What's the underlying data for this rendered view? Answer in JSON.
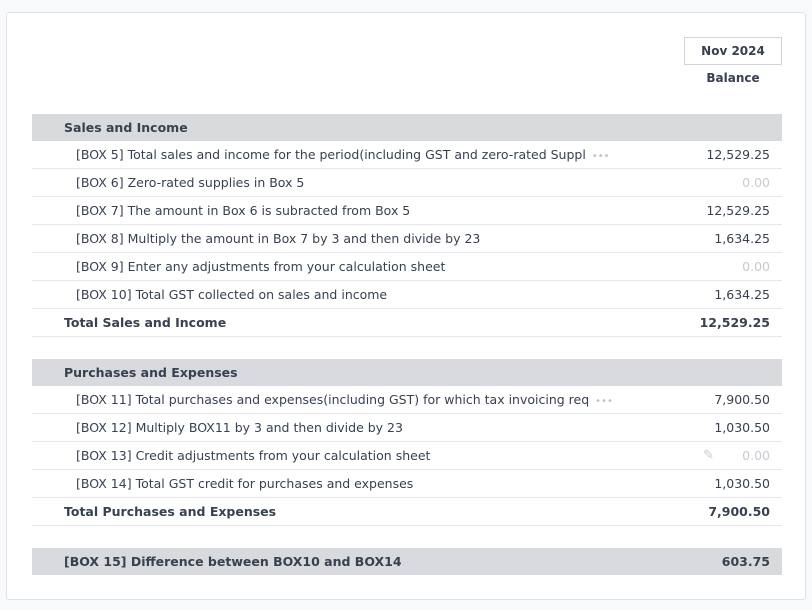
{
  "header": {
    "period": "Nov 2024",
    "column": "Balance"
  },
  "sections": [
    {
      "title": "Sales and Income",
      "rows": [
        {
          "label": "[BOX 5] Total sales and income for the period(including GST and zero-rated Suppl",
          "truncated": true,
          "value": "12,529.25"
        },
        {
          "label": "[BOX 6] Zero-rated supplies in Box 5",
          "value": "0.00",
          "zero": true
        },
        {
          "label": "[BOX 7] The amount in Box 6 is subracted from Box 5",
          "value": "12,529.25"
        },
        {
          "label": "[BOX 8] Multiply the amount in Box 7 by 3 and then divide by 23",
          "value": "1,634.25"
        },
        {
          "label": "[BOX 9] Enter any adjustments from your calculation sheet",
          "value": "0.00",
          "zero": true
        },
        {
          "label": "[BOX 10] Total GST collected on sales and income",
          "value": "1,634.25"
        }
      ],
      "total_label": "Total Sales and Income",
      "total_value": "12,529.25"
    },
    {
      "title": "Purchases and Expenses",
      "rows": [
        {
          "label": "[BOX 11] Total purchases and expenses(including GST) for which tax invoicing req",
          "truncated": true,
          "value": "7,900.50"
        },
        {
          "label": "[BOX 12] Multiply BOX11 by 3 and then divide by 23",
          "value": "1,030.50"
        },
        {
          "label": "[BOX 13] Credit adjustments from your calculation sheet",
          "value": "0.00",
          "zero": true,
          "editable": true
        },
        {
          "label": "[BOX 14] Total GST credit for purchases and expenses",
          "value": "1,030.50"
        }
      ],
      "total_label": "Total Purchases and Expenses",
      "total_value": "7,900.50"
    }
  ],
  "summary": {
    "label": "[BOX 15] Difference between BOX10 and BOX14",
    "value": "603.75"
  },
  "icons": {
    "more": "ellipsis-icon",
    "edit": "pencil-icon"
  }
}
